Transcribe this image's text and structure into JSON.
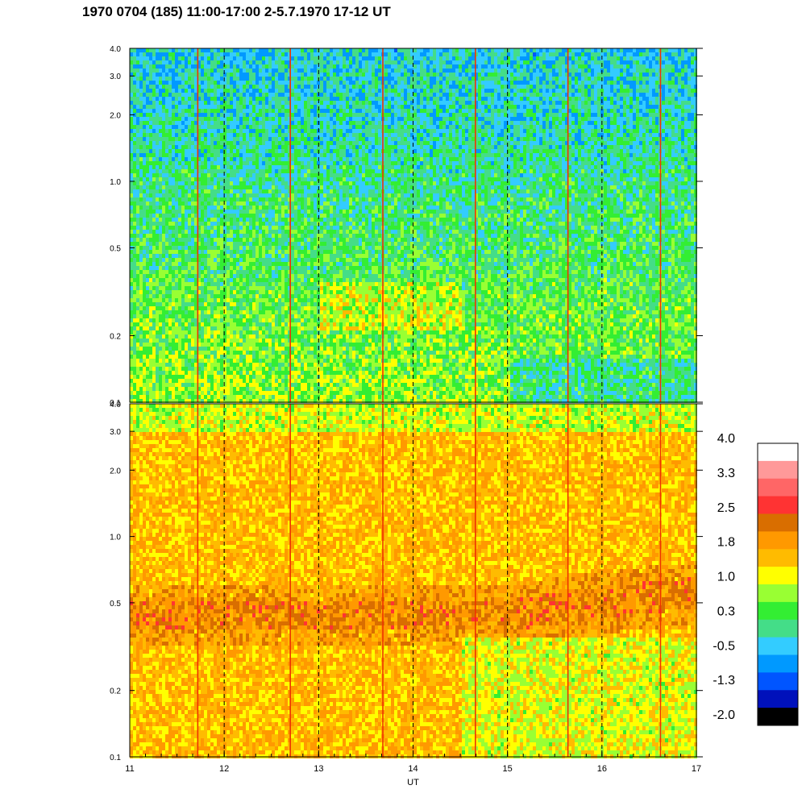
{
  "header": {
    "title": "1970 0704 (185) 11:00-17:00 2-5.7.1970  17-12 UT"
  },
  "chart_data": {
    "type": "heatmap",
    "title": "1970 0704 (185) 11:00-17:00 2-5.7.1970  17-12 UT",
    "xlabel": "UT",
    "x_ticks": [
      "11",
      "12",
      "13",
      "14",
      "15",
      "16",
      "17"
    ],
    "x_range": [
      11,
      17
    ],
    "panels": [
      {
        "name": "",
        "y_scale": "log",
        "y_range": [
          0.1,
          4.0
        ],
        "y_ticks": [
          "0.1",
          "0.2",
          "0.5",
          "1.0",
          "2.0",
          "3.0",
          "4.0"
        ],
        "y_tick_values": [
          0.1,
          0.2,
          0.5,
          1.0,
          2.0,
          3.0,
          4.0
        ],
        "typical_value_low_freq": 0.8,
        "typical_value_high_freq": -0.3
      },
      {
        "name": "",
        "y_scale": "log",
        "y_range": [
          0.1,
          4.0
        ],
        "y_ticks": [
          "0.1",
          "0.2",
          "0.5",
          "1.0",
          "2.0",
          "3.0",
          "4.0"
        ],
        "y_tick_values": [
          0.1,
          0.2,
          0.5,
          1.0,
          2.0,
          3.0,
          4.0
        ],
        "band_center": 0.45,
        "band_value": 2.0,
        "typical_value": 1.6
      }
    ],
    "hour_dashed_lines": [
      12,
      13,
      14,
      15,
      16
    ],
    "spike_times": [
      11.72,
      12.7,
      13.68,
      14.66,
      15.64,
      16.62
    ],
    "colorbar": {
      "labels": [
        "4.0",
        "3.3",
        "2.5",
        "1.8",
        "1.0",
        "0.3",
        "-0.5",
        "-1.3",
        "-2.0"
      ],
      "range": [
        -2.0,
        4.0
      ],
      "colors": [
        "#ffffff",
        "#ff9999",
        "#ff6666",
        "#ff3333",
        "#d96e00",
        "#ff9900",
        "#ffbb00",
        "#ffff00",
        "#99ff33",
        "#33ee33",
        "#44dd88",
        "#33ccff",
        "#0099ff",
        "#0055ff",
        "#0011bb",
        "#000000"
      ]
    },
    "grid": false,
    "legend": "right"
  }
}
